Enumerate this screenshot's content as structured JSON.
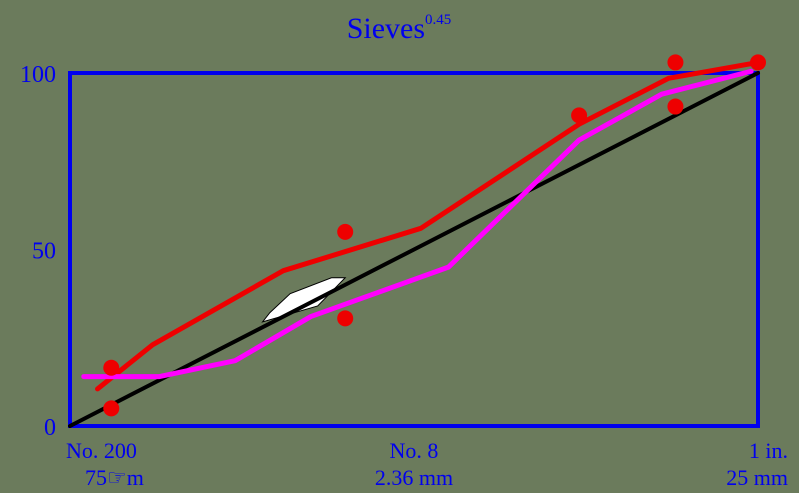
{
  "chart_data": {
    "type": "line",
    "title": "Sieves",
    "title_superscript": "0.45",
    "x_ticks": [
      {
        "x": 0.0,
        "line1": "No. 200",
        "line2": "75☞m"
      },
      {
        "x": 0.5,
        "line1": "No. 8",
        "line2": "2.36 mm"
      },
      {
        "x": 1.0,
        "line1": "1 in.",
        "line2": "25 mm"
      }
    ],
    "y_ticks": [
      "100",
      "50",
      "0"
    ],
    "xlim": [
      0,
      1
    ],
    "ylim": [
      0,
      100
    ],
    "grid": false,
    "colors": {
      "background": "#6b7b5c",
      "frame": "#0000ee",
      "text": "#0000ee",
      "max_density_line": "#000000",
      "upper_gradation": "#ee0000",
      "lower_gradation": "#ff00ff",
      "control_points": "#ee0000",
      "restricted_zone": "#ffffff"
    },
    "series": [
      {
        "role": "max_density_line",
        "values": [
          [
            0.0,
            0.0
          ],
          [
            1.0,
            100.0
          ]
        ]
      },
      {
        "role": "upper_gradation",
        "values": [
          [
            0.04,
            10.5
          ],
          [
            0.12,
            23.0
          ],
          [
            0.31,
            44.0
          ],
          [
            0.51,
            56.0
          ],
          [
            0.74,
            85.5
          ],
          [
            0.87,
            98.5
          ],
          [
            1.0,
            103.0
          ]
        ]
      },
      {
        "role": "lower_gradation",
        "values": [
          [
            0.02,
            14.0
          ],
          [
            0.13,
            14.0
          ],
          [
            0.24,
            18.5
          ],
          [
            0.35,
            31.0
          ],
          [
            0.55,
            45.0
          ],
          [
            0.74,
            81.0
          ],
          [
            0.86,
            94.0
          ],
          [
            0.99,
            100.5
          ]
        ]
      }
    ],
    "control_points": [
      [
        0.06,
        16.5
      ],
      [
        0.06,
        5.0
      ],
      [
        0.4,
        55.0
      ],
      [
        0.4,
        30.5
      ],
      [
        0.74,
        88.0
      ],
      [
        0.88,
        90.5
      ],
      [
        0.88,
        103.0
      ],
      [
        1.0,
        103.0
      ]
    ],
    "restricted_zone": [
      [
        0.29,
        32.0
      ],
      [
        0.32,
        37.5
      ],
      [
        0.38,
        42.0
      ],
      [
        0.4,
        42.0
      ],
      [
        0.36,
        34.0
      ],
      [
        0.28,
        29.5
      ]
    ]
  }
}
